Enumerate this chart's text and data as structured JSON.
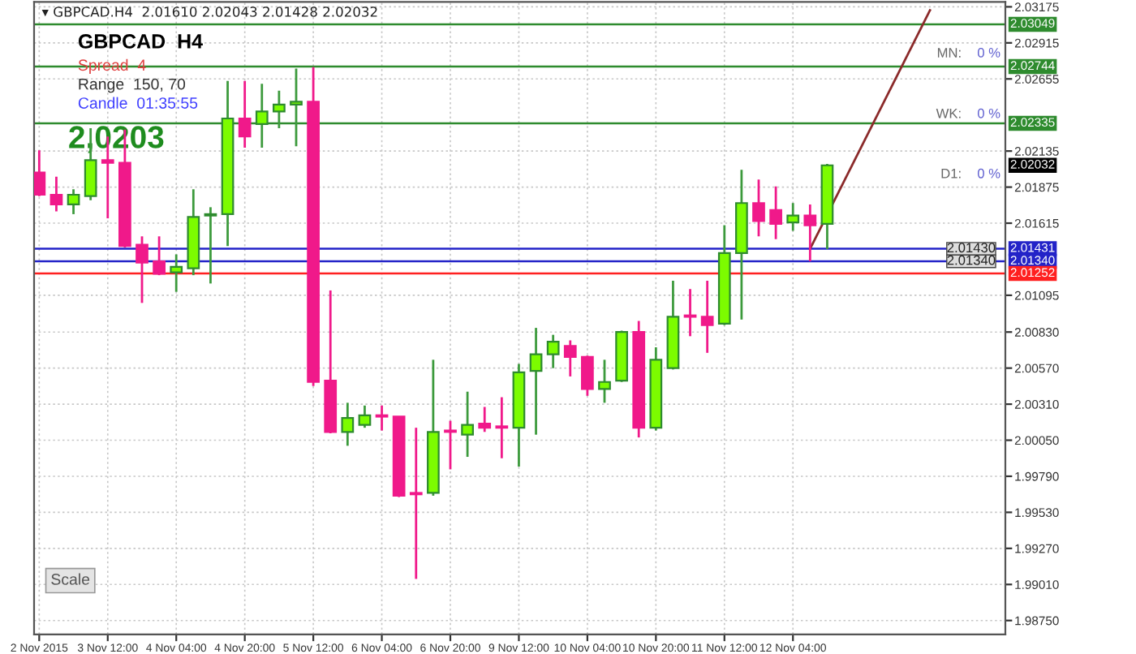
{
  "chart_data": {
    "type": "candlestick",
    "title": "▾ GBPCAD.H4  2.01610 2.02043 2.01428 2.02032",
    "categories": [
      "2 Nov 2015",
      null,
      null,
      null,
      "3 Nov 12:00",
      null,
      null,
      null,
      "4 Nov 04:00",
      null,
      null,
      null,
      "4 Nov 20:00",
      null,
      null,
      null,
      "5 Nov 12:00",
      null,
      null,
      null,
      "6 Nov 04:00",
      null,
      null,
      null,
      "6 Nov 20:00",
      null,
      null,
      null,
      "9 Nov 12:00",
      null,
      null,
      null,
      "10 Nov 04:00",
      null,
      null,
      null,
      "10 Nov 20:00",
      null,
      null,
      null,
      "11 Nov 12:00",
      null,
      null,
      null,
      "12 Nov 04:00",
      null,
      null,
      null,
      null,
      null,
      null,
      null,
      null,
      null,
      null,
      null,
      null
    ],
    "ohlc": [
      [
        2.0198,
        2.0214,
        2.0181,
        2.0182
      ],
      [
        2.0182,
        2.0195,
        2.017,
        2.0175
      ],
      [
        2.0175,
        2.0186,
        2.0168,
        2.0182
      ],
      [
        2.0181,
        2.023,
        2.0178,
        2.0207
      ],
      [
        2.0207,
        2.0224,
        2.0165,
        2.0205
      ],
      [
        2.0205,
        2.0229,
        2.0144,
        2.0145
      ],
      [
        2.0146,
        2.0152,
        2.0104,
        2.0133
      ],
      [
        2.0134,
        2.0152,
        2.0124,
        2.0125
      ],
      [
        2.0126,
        2.0139,
        2.0112,
        2.013
      ],
      [
        2.0129,
        2.0186,
        2.0124,
        2.0166
      ],
      [
        2.0167,
        2.0173,
        2.0118,
        2.0168
      ],
      [
        2.0168,
        2.0264,
        2.0145,
        2.0237
      ],
      [
        2.0237,
        2.0264,
        2.0216,
        2.0224
      ],
      [
        2.0233,
        2.0262,
        2.0216,
        2.0242
      ],
      [
        2.0242,
        2.0257,
        2.023,
        2.0247
      ],
      [
        2.0247,
        2.0273,
        2.0217,
        2.0249
      ],
      [
        2.0249,
        2.0274,
        2.0044,
        2.0047
      ],
      [
        2.0048,
        2.0113,
        2.001,
        2.0011
      ],
      [
        2.0011,
        2.0032,
        2.0001,
        2.0021
      ],
      [
        2.0016,
        2.003,
        2.0014,
        2.0023
      ],
      [
        2.0023,
        2.003,
        2.0012,
        2.0022
      ],
      [
        2.0022,
        2.0022,
        1.9964,
        1.9965
      ],
      [
        1.9967,
        2.0014,
        1.9905,
        1.9966
      ],
      [
        1.9967,
        2.0063,
        1.9965,
        2.0011
      ],
      [
        2.0012,
        2.0019,
        1.9984,
        2.0011
      ],
      [
        2.0009,
        2.004,
        1.9993,
        2.0016
      ],
      [
        2.0017,
        2.0029,
        2.0011,
        2.0014
      ],
      [
        2.0015,
        2.0036,
        1.9992,
        2.0014
      ],
      [
        2.0014,
        2.006,
        1.9986,
        2.0054
      ],
      [
        2.0055,
        2.0086,
        2.0009,
        2.0067
      ],
      [
        2.0067,
        2.0081,
        2.0057,
        2.0076
      ],
      [
        2.0073,
        2.0077,
        2.0051,
        2.0065
      ],
      [
        2.0065,
        2.0066,
        2.0037,
        2.0042
      ],
      [
        2.0042,
        2.0063,
        2.0032,
        2.0047
      ],
      [
        2.0048,
        2.0084,
        2.0047,
        2.0083
      ],
      [
        2.0083,
        2.0091,
        2.0007,
        2.0014
      ],
      [
        2.0014,
        2.0072,
        2.0012,
        2.0063
      ],
      [
        2.0057,
        2.012,
        2.0056,
        2.0094
      ],
      [
        2.0095,
        2.0114,
        2.008,
        2.0094
      ],
      [
        2.0094,
        2.012,
        2.0068,
        2.0088
      ],
      [
        2.0089,
        2.016,
        2.0088,
        2.014
      ],
      [
        2.014,
        2.02,
        2.0092,
        2.0176
      ],
      [
        2.0176,
        2.0193,
        2.0152,
        2.0163
      ],
      [
        2.0171,
        2.0188,
        2.015,
        2.0161
      ],
      [
        2.0162,
        2.0176,
        2.0156,
        2.0167
      ],
      [
        2.0167,
        2.0175,
        2.0134,
        2.016
      ],
      [
        2.0161,
        2.02043,
        2.01428,
        2.02032
      ],
      null,
      null,
      null,
      null,
      null,
      null,
      null,
      null,
      null,
      null
    ],
    "colors": [
      "#f0198a",
      "#f0198a",
      "#7cfc00",
      "#7cfc00",
      "#f0198a",
      "#f0198a",
      "#f0198a",
      "#f0198a",
      "#7cfc00",
      "#7cfc00",
      "#7cfc00",
      "#7cfc00",
      "#f0198a",
      "#7cfc00",
      "#7cfc00",
      "#7cfc00",
      "#f0198a",
      "#f0198a",
      "#7cfc00",
      "#7cfc00",
      "#f0198a",
      "#f0198a",
      "#f0198a",
      "#7cfc00",
      "#f0198a",
      "#7cfc00",
      "#f0198a",
      "#f0198a",
      "#7cfc00",
      "#7cfc00",
      "#7cfc00",
      "#f0198a",
      "#f0198a",
      "#7cfc00",
      "#7cfc00",
      "#f0198a",
      "#7cfc00",
      "#7cfc00",
      "#f0198a",
      "#f0198a",
      "#7cfc00",
      "#7cfc00",
      "#f0198a",
      "#f0198a",
      "#7cfc00",
      "#f0198a",
      "#7cfc00",
      null,
      null,
      null,
      null,
      null,
      null,
      null,
      null,
      null,
      null
    ],
    "series": [
      {
        "type": "line",
        "color": "#8b2a2a",
        "values": [
          null,
          null,
          null,
          null,
          null,
          null,
          null,
          null,
          null,
          null,
          null,
          null,
          null,
          null,
          null,
          null,
          null,
          null,
          null,
          null,
          null,
          null,
          null,
          null,
          null,
          null,
          null,
          null,
          null,
          null,
          null,
          null,
          null,
          null,
          null,
          null,
          null,
          null,
          null,
          null,
          null,
          null,
          null,
          null,
          null,
          2.0143,
          null,
          null,
          null,
          null,
          null,
          null,
          2.0315,
          null,
          null,
          null,
          null
        ]
      }
    ],
    "ylim": [
      1.9865,
      2.0321
    ],
    "yticks": [
      {
        "value": 1.9875,
        "label": "1.98750"
      },
      {
        "value": 1.9901,
        "label": "1.99010"
      },
      {
        "value": 1.9927,
        "label": "1.99270"
      },
      {
        "value": 1.9953,
        "label": "1.99530"
      },
      {
        "value": 1.9979,
        "label": "1.99790"
      },
      {
        "value": 2.0005,
        "label": "2.00050"
      },
      {
        "value": 2.0031,
        "label": "2.00310"
      },
      {
        "value": 2.0057,
        "label": "2.00570"
      },
      {
        "value": 2.0083,
        "label": "2.00830"
      },
      2.01095,
      2.01615,
      2.01875,
      2.02135,
      2.02655,
      2.02915,
      2.03175
    ],
    "grid": true,
    "ref_lines": [
      {
        "axis": "y",
        "value": 2.03049,
        "label": "2.03049",
        "color": "#2e8b2e"
      },
      {
        "axis": "y",
        "value": 2.02744,
        "label": "2.02744",
        "color": "#2e8b2e"
      },
      {
        "axis": "y",
        "value": 2.02335,
        "label": "2.02335",
        "color": "#2e8b2e"
      },
      {
        "axis": "y",
        "value": 2.01431,
        "label": "2.01431",
        "color": "#2323c8"
      },
      {
        "axis": "y",
        "value": 2.0134,
        "label": "2.01340",
        "color": "#2323c8"
      },
      {
        "axis": "y",
        "value": 2.01252,
        "label": "2.01252",
        "color": "#ff2020"
      }
    ],
    "annotations": [
      "GBPCAD  H4",
      "Spread  4",
      "Range  150, 70",
      "Candle  01:35:55",
      "2,0203",
      "MN:",
      "0 %",
      "WK:",
      "0 %",
      "D1:",
      "0 %",
      "Scale",
      "2.02032",
      {
        "text": "2.01430",
        "y": 2.0143
      },
      {
        "text": "2.01340",
        "y": 2.0134
      }
    ]
  }
}
